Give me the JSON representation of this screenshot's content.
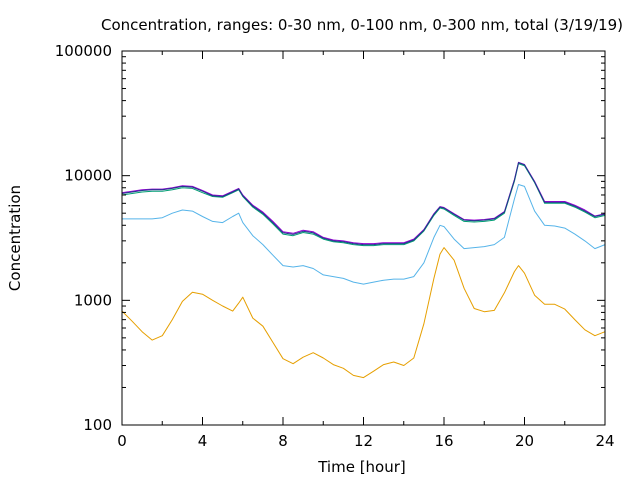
{
  "chart_data": {
    "type": "line",
    "title": "Concentration, ranges: 0-30 nm, 0-100 nm, 0-300 nm, total (3/19/19)",
    "xlabel": "Time [hour]",
    "ylabel": "Concentration",
    "xlim": [
      0,
      24
    ],
    "ylim": [
      100,
      100000
    ],
    "yscale": "log",
    "grid": false,
    "x_ticks": [
      0,
      4,
      8,
      12,
      16,
      20,
      24
    ],
    "x_tick_labels": [
      "0",
      "4",
      "8",
      "12",
      "16",
      "20",
      "24"
    ],
    "y_ticks": [
      100,
      1000,
      10000,
      100000
    ],
    "y_tick_labels": [
      "100",
      "1000",
      "10000",
      "100000"
    ],
    "series": [
      {
        "color": "#e69f00",
        "x": [
          0,
          0.5,
          1,
          1.5,
          2,
          2.5,
          3,
          3.5,
          4,
          4.5,
          5,
          5.5,
          5.8,
          6,
          6.5,
          7,
          7.5,
          8,
          8.5,
          9,
          9.5,
          10,
          10.5,
          11,
          11.5,
          12,
          12.5,
          13,
          13.5,
          14,
          14.5,
          15,
          15.5,
          15.8,
          16,
          16.5,
          17,
          17.5,
          18,
          18.5,
          19,
          19.5,
          19.7,
          20,
          20.5,
          21,
          21.5,
          22,
          22.5,
          23,
          23.5,
          24
        ],
        "y": [
          820,
          680,
          560,
          480,
          520,
          700,
          980,
          1160,
          1120,
          1000,
          900,
          820,
          950,
          1060,
          720,
          620,
          460,
          340,
          310,
          350,
          380,
          345,
          305,
          285,
          250,
          240,
          270,
          305,
          320,
          300,
          345,
          650,
          1500,
          2350,
          2650,
          2100,
          1250,
          860,
          810,
          830,
          1150,
          1700,
          1900,
          1650,
          1100,
          930,
          930,
          850,
          700,
          580,
          520,
          560
        ]
      },
      {
        "color": "#56b4e9",
        "x": [
          0,
          0.5,
          1,
          1.5,
          2,
          2.5,
          3,
          3.5,
          4,
          4.5,
          5,
          5.5,
          5.8,
          6,
          6.5,
          7,
          7.5,
          8,
          8.5,
          9,
          9.5,
          10,
          10.5,
          11,
          11.5,
          12,
          12.5,
          13,
          13.5,
          14,
          14.5,
          15,
          15.5,
          15.8,
          16,
          16.5,
          17,
          17.5,
          18,
          18.5,
          19,
          19.5,
          19.7,
          20,
          20.5,
          21,
          21.5,
          22,
          22.5,
          23,
          23.5,
          24
        ],
        "y": [
          4500,
          4500,
          4500,
          4500,
          4600,
          5000,
          5300,
          5200,
          4700,
          4300,
          4200,
          4700,
          5000,
          4200,
          3300,
          2800,
          2300,
          1900,
          1850,
          1900,
          1800,
          1600,
          1550,
          1500,
          1400,
          1350,
          1400,
          1450,
          1480,
          1480,
          1550,
          2000,
          3200,
          4000,
          3900,
          3100,
          2600,
          2650,
          2700,
          2800,
          3200,
          6500,
          8500,
          8200,
          5200,
          4000,
          3950,
          3800,
          3400,
          3000,
          2600,
          2800
        ]
      },
      {
        "color": "#009e73",
        "x": [
          0,
          0.5,
          1,
          1.5,
          2,
          2.5,
          3,
          3.5,
          4,
          4.5,
          5,
          5.5,
          5.8,
          6,
          6.5,
          7,
          7.5,
          8,
          8.5,
          9,
          9.5,
          10,
          10.5,
          11,
          11.5,
          12,
          12.5,
          13,
          13.5,
          14,
          14.5,
          15,
          15.5,
          15.8,
          16,
          16.5,
          17,
          17.5,
          18,
          18.5,
          19,
          19.5,
          19.7,
          20,
          20.5,
          21,
          21.5,
          22,
          22.5,
          23,
          23.5,
          24
        ],
        "y": [
          7000,
          7200,
          7400,
          7500,
          7500,
          7700,
          8000,
          7900,
          7300,
          6800,
          6700,
          7300,
          7700,
          6800,
          5600,
          4900,
          4100,
          3400,
          3300,
          3500,
          3400,
          3100,
          2950,
          2900,
          2800,
          2750,
          2750,
          2800,
          2800,
          2800,
          3000,
          3600,
          4800,
          5500,
          5400,
          4800,
          4300,
          4250,
          4300,
          4400,
          5000,
          9000,
          12500,
          12000,
          8800,
          6000,
          6000,
          6000,
          5600,
          5100,
          4600,
          4800
        ]
      },
      {
        "color": "#9400d3",
        "x": [
          0,
          0.5,
          1,
          1.5,
          2,
          2.5,
          3,
          3.5,
          4,
          4.5,
          5,
          5.5,
          5.8,
          6,
          6.5,
          7,
          7.5,
          8,
          8.5,
          9,
          9.5,
          10,
          10.5,
          11,
          11.5,
          12,
          12.5,
          13,
          13.5,
          14,
          14.5,
          15,
          15.5,
          15.8,
          16,
          16.5,
          17,
          17.5,
          18,
          18.5,
          19,
          19.5,
          19.7,
          20,
          20.5,
          21,
          21.5,
          22,
          22.5,
          23,
          23.5,
          24
        ],
        "y": [
          7300,
          7500,
          7700,
          7800,
          7800,
          8000,
          8300,
          8200,
          7600,
          7000,
          6900,
          7500,
          7900,
          7000,
          5800,
          5100,
          4300,
          3550,
          3450,
          3650,
          3550,
          3200,
          3050,
          3000,
          2900,
          2850,
          2850,
          2900,
          2900,
          2900,
          3100,
          3700,
          4950,
          5650,
          5550,
          4950,
          4450,
          4400,
          4450,
          4550,
          5150,
          9300,
          12800,
          12300,
          9000,
          6200,
          6200,
          6200,
          5800,
          5300,
          4750,
          4950
        ]
      },
      {
        "color": "#1f3a8a",
        "x": [
          0,
          0.5,
          1,
          1.5,
          2,
          2.5,
          3,
          3.5,
          4,
          4.5,
          5,
          5.5,
          5.8,
          6,
          6.5,
          7,
          7.5,
          8,
          8.5,
          9,
          9.5,
          10,
          10.5,
          11,
          11.5,
          12,
          12.5,
          13,
          13.5,
          14,
          14.5,
          15,
          15.5,
          15.8,
          16,
          16.5,
          17,
          17.5,
          18,
          18.5,
          19,
          19.5,
          19.7,
          20,
          20.5,
          21,
          21.5,
          22,
          22.5,
          23,
          23.5,
          24
        ],
        "y": [
          7200,
          7400,
          7600,
          7700,
          7700,
          7900,
          8200,
          8100,
          7500,
          6900,
          6800,
          7400,
          7800,
          6900,
          5700,
          5000,
          4200,
          3480,
          3380,
          3580,
          3480,
          3150,
          3000,
          2950,
          2850,
          2800,
          2800,
          2850,
          2850,
          2850,
          3050,
          3650,
          4900,
          5600,
          5500,
          4900,
          4400,
          4350,
          4400,
          4500,
          5100,
          9200,
          12700,
          12200,
          8900,
          6100,
          6100,
          6100,
          5700,
          5200,
          4700,
          4900
        ]
      }
    ]
  }
}
